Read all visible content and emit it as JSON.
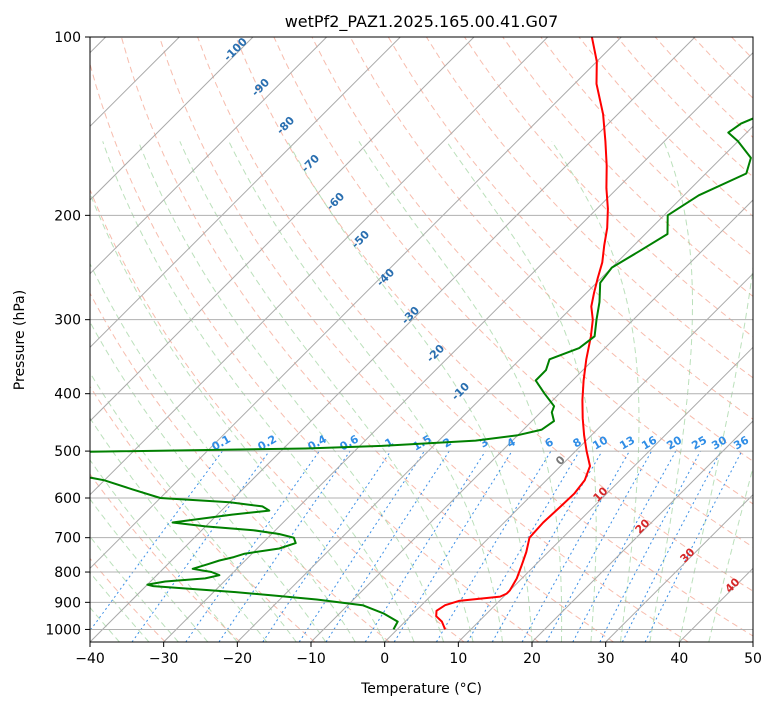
{
  "chart_data": {
    "type": "line",
    "title": "wetPf2_PAZ1.2025.165.00.41.G07",
    "xlabel": "Temperature (°C)",
    "ylabel": "Pressure (hPa)",
    "xlim": [
      -40,
      50
    ],
    "ylim": [
      1050,
      100
    ],
    "y_scale": "log",
    "grid": true,
    "x_ticks": [
      -40,
      -30,
      -20,
      -10,
      0,
      10,
      20,
      30,
      40,
      50
    ],
    "y_ticks": [
      100,
      200,
      300,
      400,
      500,
      600,
      700,
      800,
      900,
      1000
    ],
    "series": [
      {
        "color": "#ff0000",
        "p": [
          1000,
          970,
          950,
          930,
          910,
          895,
          880,
          870,
          860,
          820,
          780,
          740,
          700,
          660,
          620,
          590,
          560,
          530,
          500,
          470,
          440,
          410,
          380,
          350,
          320,
          300,
          285,
          270,
          255,
          240,
          225,
          210,
          195,
          180,
          165,
          150,
          135,
          120,
          110,
          100
        ],
        "t": [
          6.5,
          5,
          3.5,
          2.8,
          3.2,
          4.5,
          9.5,
          10,
          10,
          9.3,
          8.2,
          7,
          5.5,
          5.3,
          5.5,
          5.6,
          5.2,
          4,
          1.5,
          -1,
          -3.5,
          -6,
          -8.5,
          -11,
          -13.5,
          -15.5,
          -17.5,
          -19,
          -20.5,
          -22,
          -24,
          -26,
          -28.5,
          -31.5,
          -34.5,
          -38,
          -42,
          -47,
          -50,
          -54
        ]
      },
      {
        "color": "#008000",
        "p": [
          1000,
          970,
          940,
          910,
          890,
          875,
          865,
          855,
          845,
          840,
          830,
          820,
          810,
          800,
          790,
          775,
          765,
          755,
          745,
          730,
          715,
          700,
          690,
          680,
          670,
          660,
          640,
          630,
          620,
          610,
          600,
          580,
          560,
          540,
          520,
          505,
          495,
          490,
          480,
          470,
          460,
          445,
          430,
          420,
          400,
          380,
          365,
          350,
          335,
          320,
          300,
          280,
          260,
          245,
          230,
          215,
          200,
          185,
          170,
          160,
          150,
          145,
          140,
          130,
          120,
          110,
          100
        ],
        "t": [
          -0.5,
          -1,
          -4,
          -8,
          -15,
          -22,
          -27,
          -33,
          -39,
          -40,
          -38,
          -33,
          -31.5,
          -33,
          -36,
          -34.5,
          -33.5,
          -32,
          -31,
          -27,
          -25.5,
          -26.5,
          -29,
          -33,
          -40,
          -45,
          -38,
          -33.5,
          -35,
          -40,
          -50,
          -55,
          -60,
          -68,
          -75,
          -83,
          -37,
          -27,
          -15,
          -10,
          -7.5,
          -7,
          -8.5,
          -9,
          -12,
          -15,
          -15,
          -16,
          -13.5,
          -13,
          -15,
          -17,
          -19.5,
          -20,
          -18.5,
          -17,
          -19.5,
          -18,
          -14.5,
          -16,
          -20,
          -22.5,
          -22,
          -18.5,
          -15,
          -10.5,
          -6.5
        ]
      }
    ],
    "dry_adiabat_labels": [
      -100,
      -90,
      -80,
      -70,
      -60,
      -50,
      -40,
      -30,
      -20,
      -10
    ],
    "moist_adiabat_labels": [
      0,
      10,
      20,
      30,
      40
    ],
    "mixing_ratio_labels": [
      0.1,
      0.2,
      0.4,
      0.6,
      1,
      1.5,
      2,
      3,
      4,
      6,
      8,
      10,
      13,
      16,
      20,
      25,
      30,
      36
    ]
  }
}
